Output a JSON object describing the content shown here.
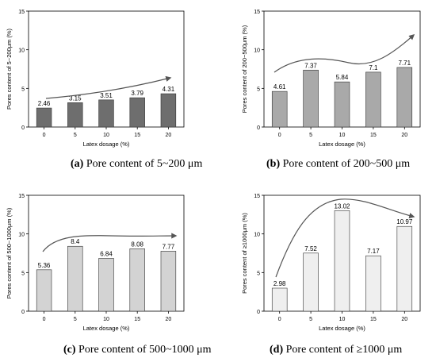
{
  "chart_data": [
    {
      "type": "bar",
      "panel_id": "(a)",
      "caption_text": "Pore content of 5~200 μm",
      "xlabel": "Latex dosage (%)",
      "ylabel": "Pores content of 5~200μm (%)",
      "categories": [
        "0",
        "5",
        "10",
        "15",
        "20"
      ],
      "values": [
        2.46,
        3.15,
        3.51,
        3.79,
        4.31
      ],
      "data_labels": [
        "2.46",
        "3.15",
        "3.51",
        "3.79",
        "4.31"
      ],
      "ylim": [
        0,
        15
      ],
      "yticks": [
        "0",
        "5",
        "10",
        "15"
      ],
      "bar_color": "#6e6e6e",
      "trend_arrow": true
    },
    {
      "type": "bar",
      "panel_id": "(b)",
      "caption_text": "Pore content of 200~500 μm",
      "xlabel": "Latex dosage (%)",
      "ylabel": "Pores content of 200~500μm (%)",
      "categories": [
        "0",
        "5",
        "10",
        "15",
        "20"
      ],
      "values": [
        4.61,
        7.37,
        5.84,
        7.1,
        7.71
      ],
      "data_labels": [
        "4.61",
        "7.37",
        "5.84",
        "7.1",
        "7.71"
      ],
      "ylim": [
        0,
        15
      ],
      "yticks": [
        "0",
        "5",
        "10",
        "15"
      ],
      "bar_color": "#a9a9a9",
      "trend_arrow": true
    },
    {
      "type": "bar",
      "panel_id": "(c)",
      "caption_text": "Pore content of 500~1000 μm",
      "xlabel": "Latex dosage (%)",
      "ylabel": "Pores content of 500~1000μm (%)",
      "categories": [
        "0",
        "5",
        "10",
        "15",
        "20"
      ],
      "values": [
        5.36,
        8.4,
        6.84,
        8.08,
        7.77
      ],
      "data_labels": [
        "5.36",
        "8.4",
        "6.84",
        "8.08",
        "7.77"
      ],
      "ylim": [
        0,
        15
      ],
      "yticks": [
        "0",
        "5",
        "10",
        "15"
      ],
      "bar_color": "#d3d3d3",
      "trend_arrow": true
    },
    {
      "type": "bar",
      "panel_id": "(d)",
      "caption_text": "Pore content of ≥1000 μm",
      "xlabel": "Latex dosage (%)",
      "ylabel": "Pores content of ≥1000μm (%)",
      "categories": [
        "0",
        "5",
        "10",
        "15",
        "20"
      ],
      "values": [
        2.98,
        7.52,
        13.02,
        7.17,
        10.97
      ],
      "data_labels": [
        "2.98",
        "7.52",
        "13.02",
        "7.17",
        "10.97"
      ],
      "ylim": [
        0,
        15
      ],
      "yticks": [
        "0",
        "5",
        "10",
        "15"
      ],
      "bar_color": "#efefef",
      "trend_arrow": true
    }
  ]
}
